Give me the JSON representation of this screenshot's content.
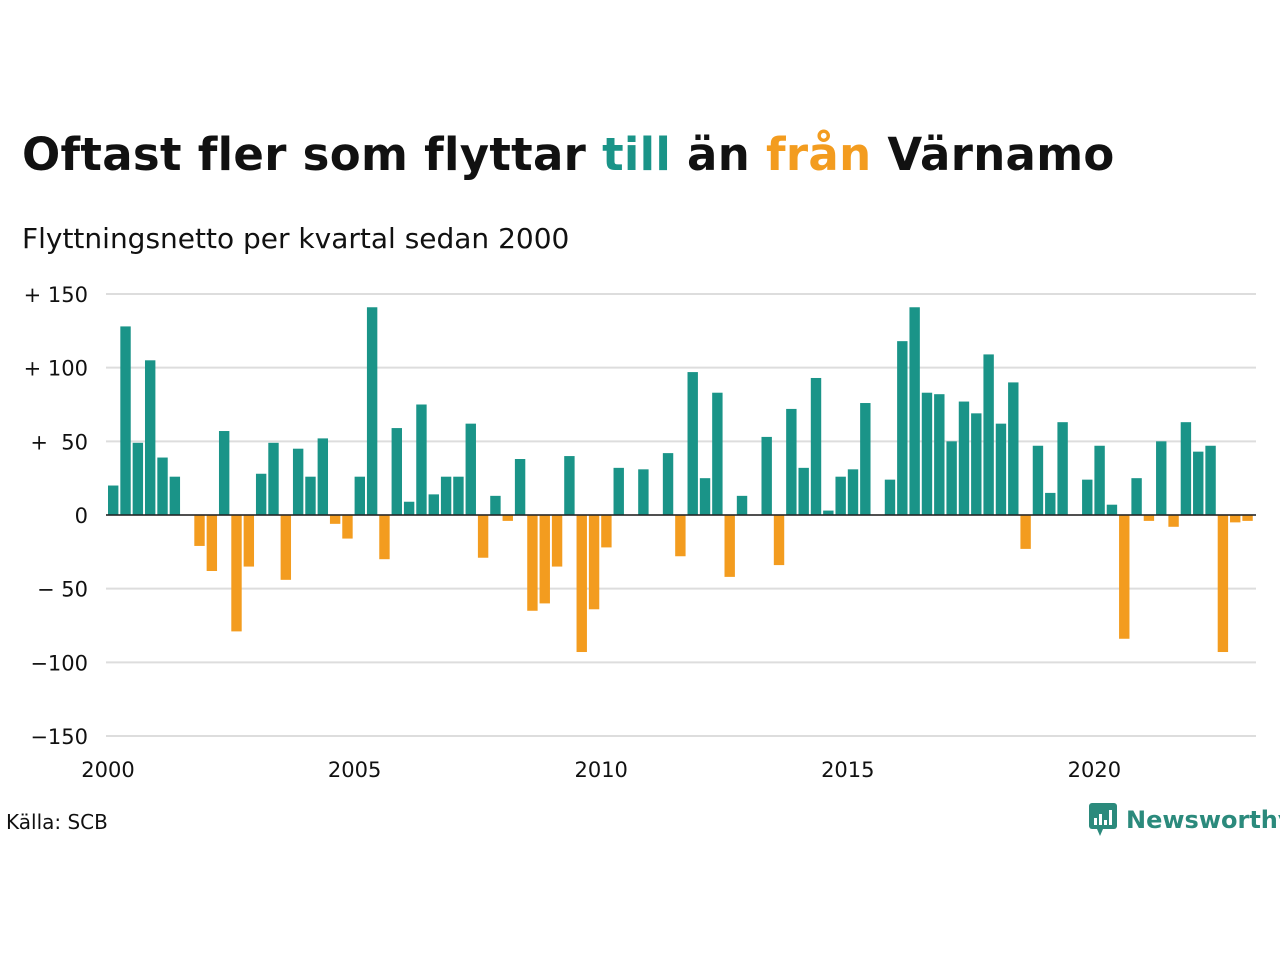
{
  "title": {
    "part1": "Oftast fler som flyttar ",
    "highlight_positive": "till",
    "part2": " än ",
    "highlight_negative": "från",
    "part3": " Värnamo"
  },
  "subtitle": "Flyttningsnetto per kvartal sedan 2000",
  "source": "Källa: SCB",
  "brand": "Newsworthy",
  "colors": {
    "positive": "#1a9488",
    "negative": "#f39c1f",
    "grid": "#dddddd",
    "brand": "#2b8a7c"
  },
  "chart_data": {
    "type": "bar",
    "title": "Oftast fler som flyttar till än från Värnamo",
    "subtitle": "Flyttningsnetto per kvartal sedan 2000",
    "x_start": "2000 Q1",
    "x_tick_labels": [
      "2000",
      "2005",
      "2010",
      "2015",
      "2020"
    ],
    "y_tick_labels": [
      "+ 150",
      "+ 100",
      "+  50",
      "0",
      "− 50",
      "−100",
      "−150"
    ],
    "y_ticks": [
      150,
      100,
      50,
      0,
      -50,
      -100,
      -150
    ],
    "ylim": [
      -150,
      150
    ],
    "grid": true,
    "values": [
      20,
      128,
      49,
      105,
      39,
      26,
      0,
      -21,
      -38,
      57,
      -79,
      -35,
      28,
      49,
      -44,
      45,
      26,
      52,
      -6,
      -16,
      26,
      141,
      -30,
      59,
      9,
      75,
      14,
      26,
      26,
      62,
      -29,
      13,
      -4,
      38,
      -65,
      -60,
      -35,
      40,
      -93,
      -64,
      -22,
      32,
      0,
      31,
      0,
      42,
      -28,
      97,
      25,
      83,
      -42,
      13,
      0,
      53,
      -34,
      72,
      32,
      93,
      3,
      26,
      31,
      76,
      0,
      24,
      118,
      141,
      83,
      82,
      50,
      77,
      69,
      109,
      62,
      90,
      -23,
      47,
      15,
      63,
      0,
      24,
      47,
      7,
      -84,
      25,
      -4,
      50,
      -8,
      63,
      43,
      47,
      -93,
      -5,
      -4
    ]
  }
}
